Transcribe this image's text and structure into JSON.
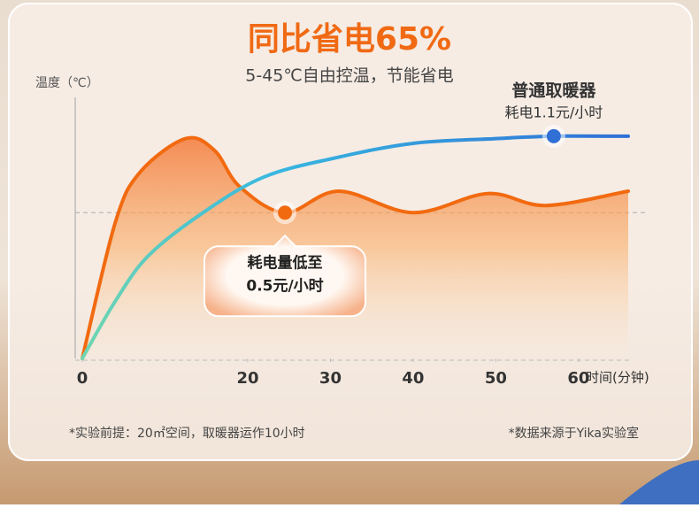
{
  "chart_data": {
    "type": "line",
    "title": "同比省电65%",
    "subtitle": "5-45℃自由控温，节能省电",
    "y_label": "温度（℃）",
    "x_label": "时间(分钟)",
    "xlim": [
      0,
      66
    ],
    "ylim": [
      0,
      100
    ],
    "xticks": [
      0,
      20,
      30,
      40,
      50,
      60
    ],
    "reference_line": 61,
    "series": [
      {
        "name": "普通取暖器",
        "note": "耗电1.1元/小时",
        "color": "#2f6fd6",
        "x": [
          0,
          4,
          8,
          14.6,
          22,
          30.7,
          40,
          50,
          57,
          66
        ],
        "values": [
          0,
          24,
          43,
          61,
          76,
          84,
          90,
          92,
          93,
          93
        ],
        "marker": 8
      },
      {
        "label_lines": [
          "耗电量低至",
          "0.5元/小时"
        ],
        "color": "#f26a10",
        "x": [
          0,
          4,
          7,
          12.5,
          16,
          19,
          24.5,
          31,
          40,
          49,
          56,
          66
        ],
        "values": [
          0,
          57,
          78,
          92,
          87,
          72,
          61,
          70,
          61,
          69,
          64,
          70
        ],
        "marker": 6
      }
    ],
    "footnotes": [
      "*实验前提：20㎡空间，取暖器运作10小时",
      "*数据来源于Yika实验室"
    ]
  }
}
